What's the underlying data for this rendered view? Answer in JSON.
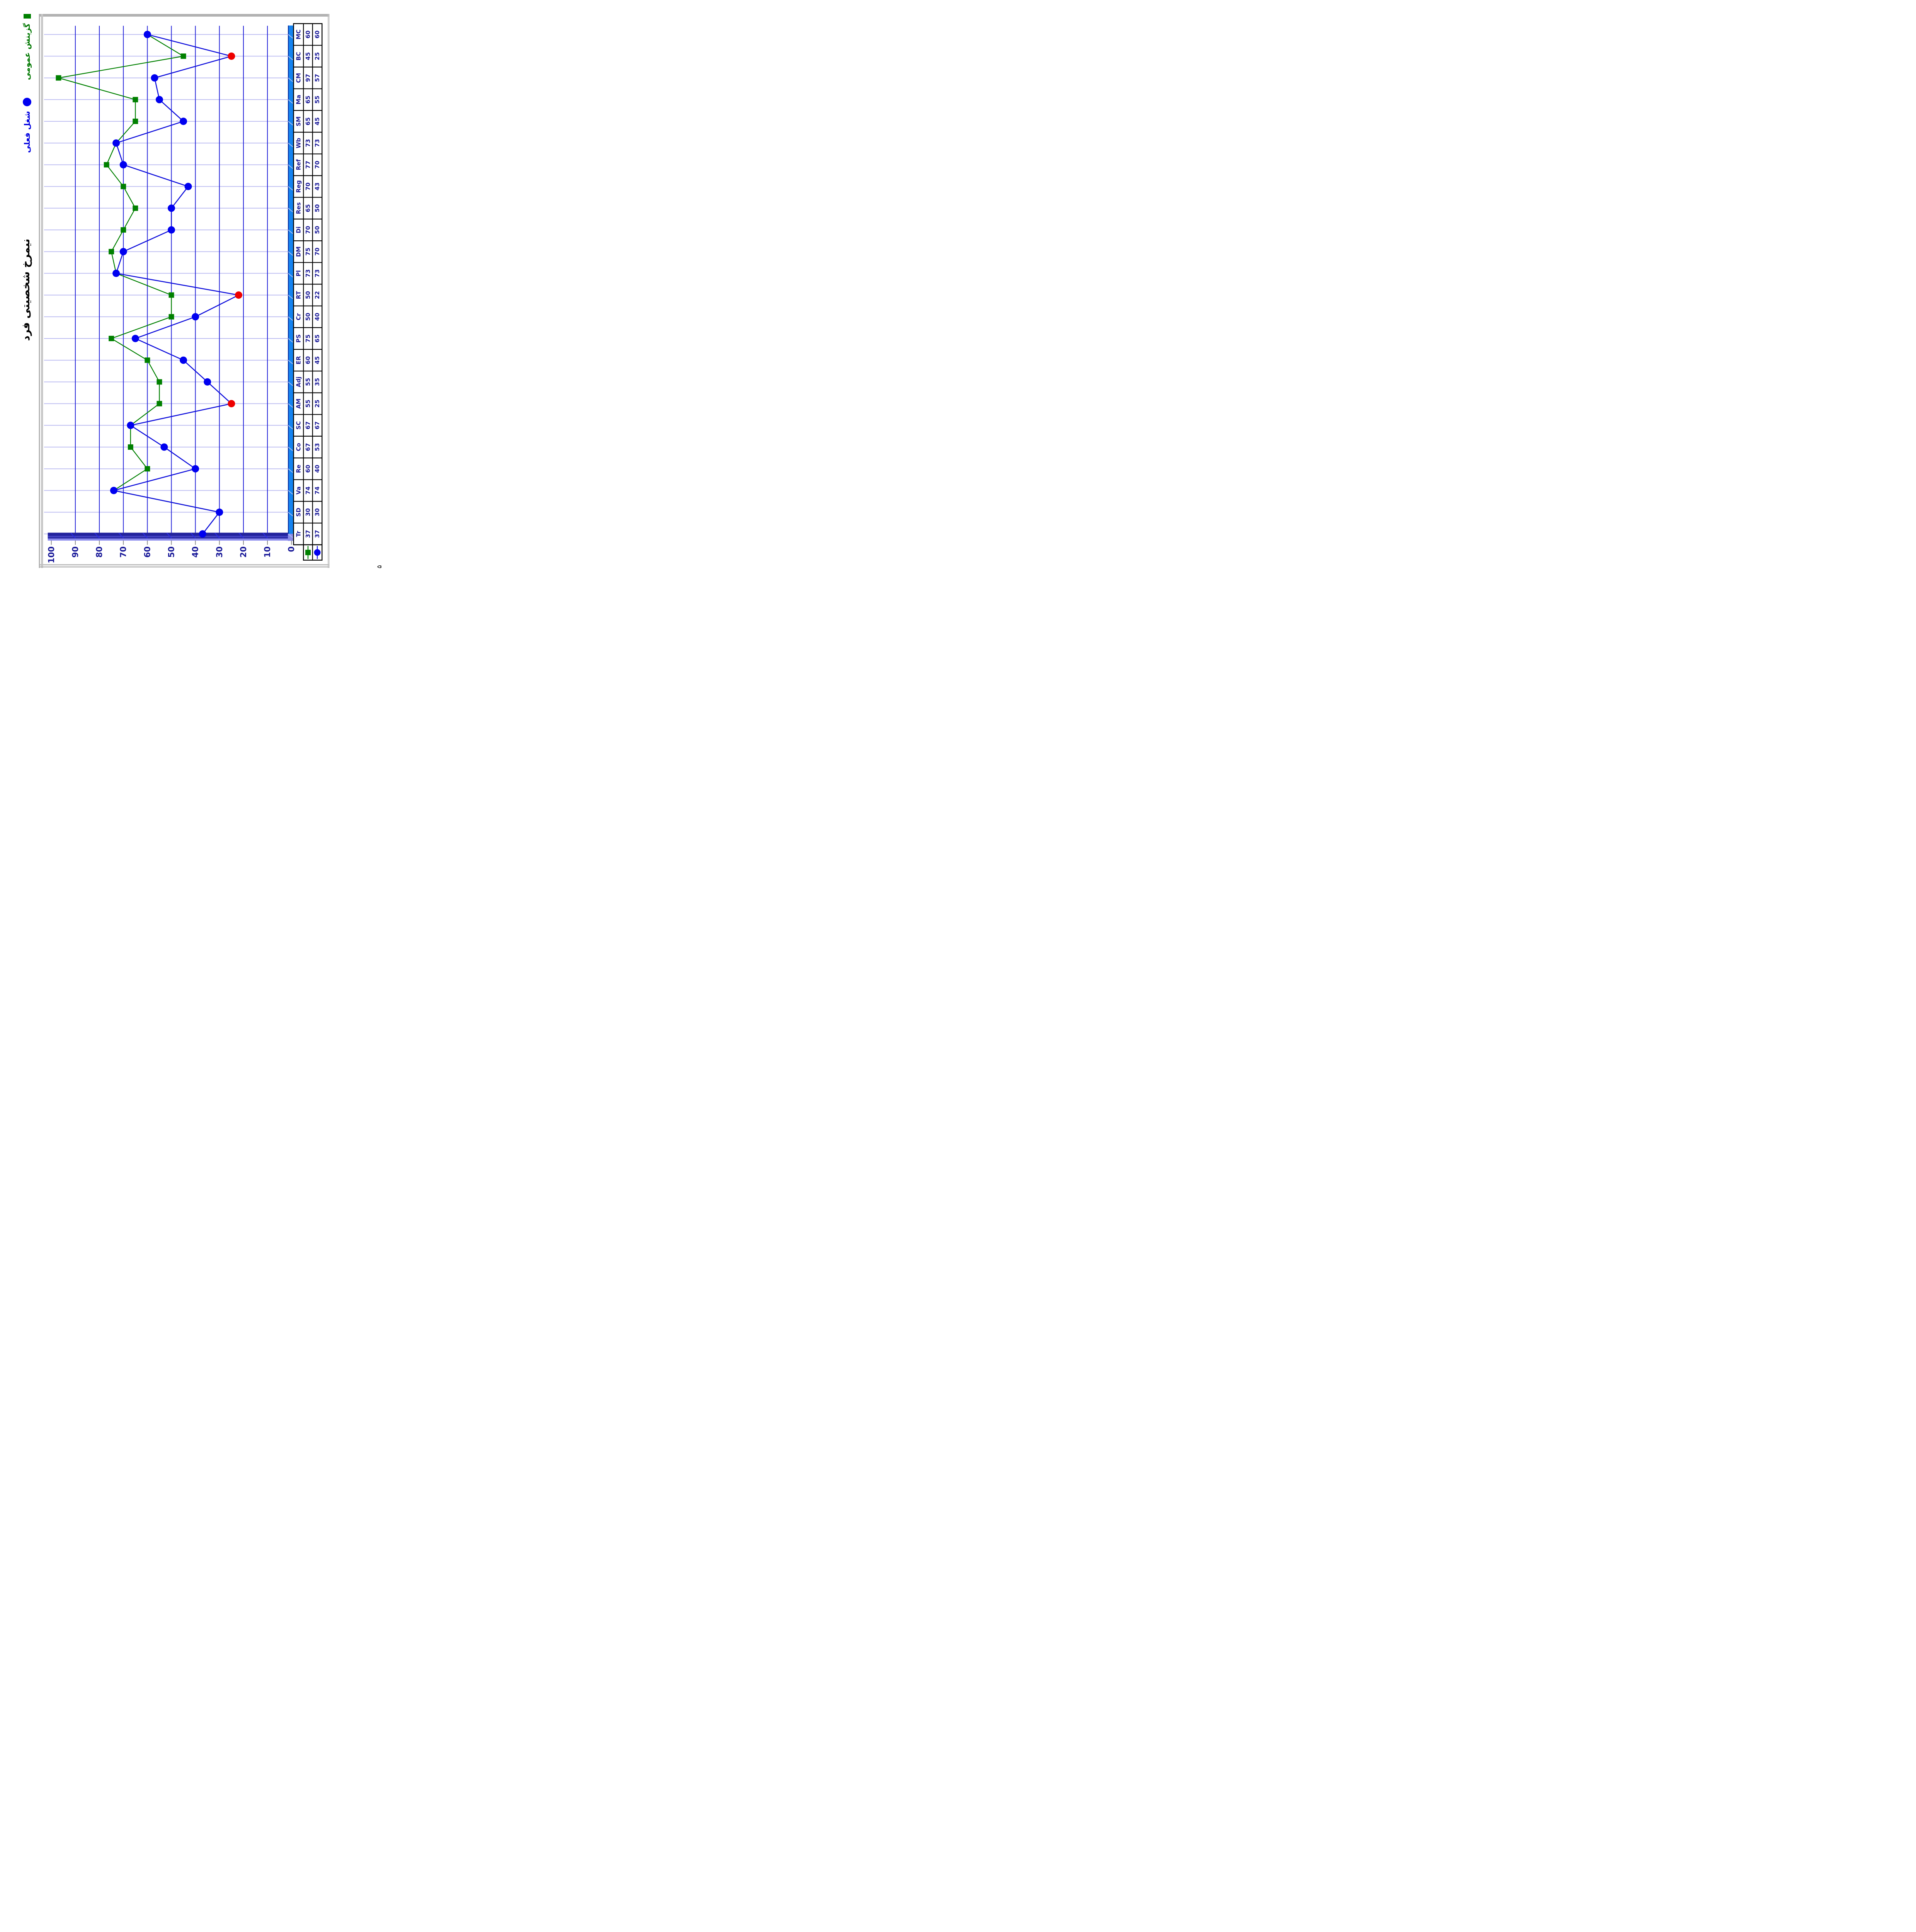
{
  "page": {
    "number": "۵"
  },
  "title": "نیمرخ شخصیتی فرد",
  "legend": {
    "general_label": "گزینش عمومی",
    "current_label": "شغل فعلی"
  },
  "chart_data": {
    "type": "line",
    "orientation": "rotated 90deg counter-clockwise on portrait page",
    "title": "نیمرخ شخصیتی فرد",
    "categories": [
      "MC",
      "BC",
      "CM",
      "Ma",
      "SM",
      "Wb",
      "Ref",
      "Reg",
      "Res",
      "Di",
      "DM",
      "Pl",
      "RT",
      "Cr",
      "PS",
      "ER",
      "Adj",
      "AM",
      "SC",
      "Co",
      "Re",
      "Va",
      "SD",
      "Tr"
    ],
    "series": [
      {
        "name": "گزینش عمومی",
        "marker": "square",
        "color": "#008000",
        "line_color": "#008000",
        "values": [
          60,
          45,
          97,
          65,
          65,
          73,
          77,
          70,
          65,
          70,
          75,
          73,
          50,
          50,
          75,
          60,
          55,
          55,
          67,
          67,
          60,
          74,
          30,
          37
        ]
      },
      {
        "name": "شغل فعلی",
        "marker": "circle",
        "color": "#0000F0",
        "line_color": "#1010DC",
        "values": [
          60,
          25,
          57,
          55,
          45,
          73,
          70,
          43,
          50,
          50,
          70,
          73,
          22,
          40,
          65,
          45,
          35,
          25,
          67,
          53,
          40,
          74,
          30,
          37
        ],
        "red_highlight_indexes": [
          1,
          12,
          17
        ],
        "red_highlight_color": "#EE0000"
      }
    ],
    "ylim": [
      0,
      100
    ],
    "yticks": [
      0,
      10,
      20,
      30,
      40,
      50,
      60,
      70,
      80,
      90,
      100
    ],
    "grid": {
      "value_gridline_color": "#2323D9",
      "category_gridline_color": "#BEBEF2"
    },
    "axis_wall_color": "#1583F0",
    "axis_floor_color": "#22229E",
    "legend_position": "top-right (appears top-left after rotation)",
    "data_table_attached": true
  }
}
